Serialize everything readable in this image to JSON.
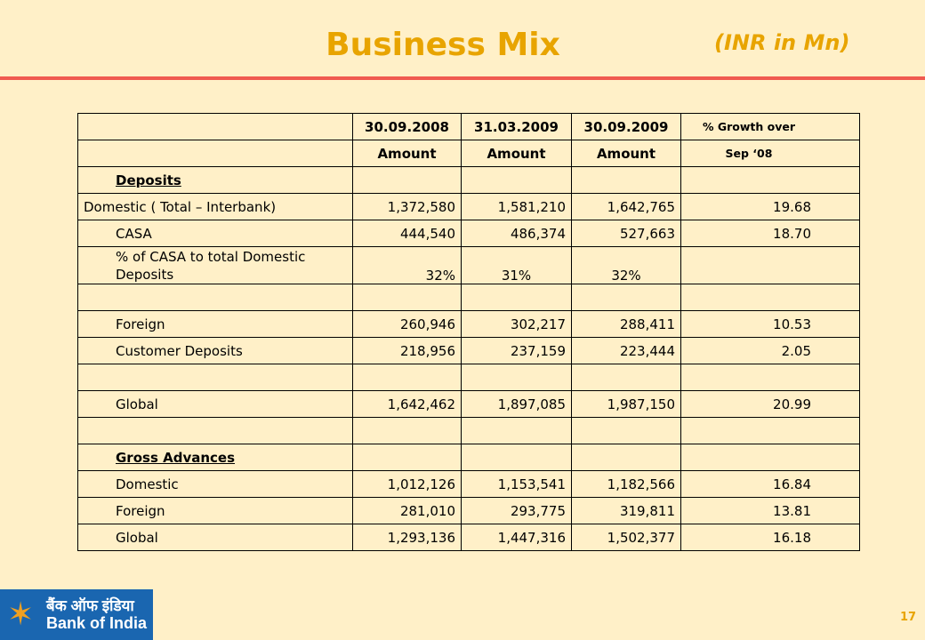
{
  "title": "Business Mix",
  "unit": "(INR  in Mn)",
  "columns": {
    "dates": [
      "30.09.2008",
      "31.03.2009",
      "30.09.2009"
    ],
    "growth_top": "% Growth over",
    "amount": "Amount",
    "growth_bottom": "Sep ‘08"
  },
  "rows": {
    "deposits_heading": "Deposits",
    "domestic_total": {
      "label": "Domestic ( Total – Interbank)",
      "v": [
        "1,372,580",
        "1,581,210",
        "1,642,765",
        "19.68"
      ]
    },
    "casa": {
      "label": "CASA",
      "v": [
        "444,540",
        "486,374",
        "527,663",
        "18.70"
      ]
    },
    "casa_pct": {
      "label": "% of CASA to total Domestic Deposits",
      "v": [
        "32%",
        "31%",
        "32%",
        ""
      ]
    },
    "foreign": {
      "label": "Foreign",
      "v": [
        "260,946",
        "302,217",
        "288,411",
        "10.53"
      ]
    },
    "customer": {
      "label": "Customer Deposits",
      "v": [
        "218,956",
        "237,159",
        "223,444",
        "2.05"
      ]
    },
    "global": {
      "label": "Global",
      "v": [
        "1,642,462",
        "1,897,085",
        "1,987,150",
        "20.99"
      ]
    },
    "advances_heading": "Gross Advances",
    "adv_domestic": {
      "label": "Domestic",
      "v": [
        "1,012,126",
        "1,153,541",
        "1,182,566",
        "16.84"
      ]
    },
    "adv_foreign": {
      "label": "Foreign",
      "v": [
        "281,010",
        "293,775",
        "319,811",
        "13.81"
      ]
    },
    "adv_global": {
      "label": "Global",
      "v": [
        "1,293,136",
        "1,447,316",
        "1,502,377",
        "16.18"
      ]
    }
  },
  "logo": {
    "hindi": "बैंक ऑफ इंडिया",
    "english": "Bank of India",
    "icon": "star-logo-icon"
  },
  "page_number": "17",
  "colors": {
    "accent": "#e8a400",
    "rule": "#f05a50",
    "background": "#fff0c8",
    "logo_bg": "#1a66b0"
  }
}
